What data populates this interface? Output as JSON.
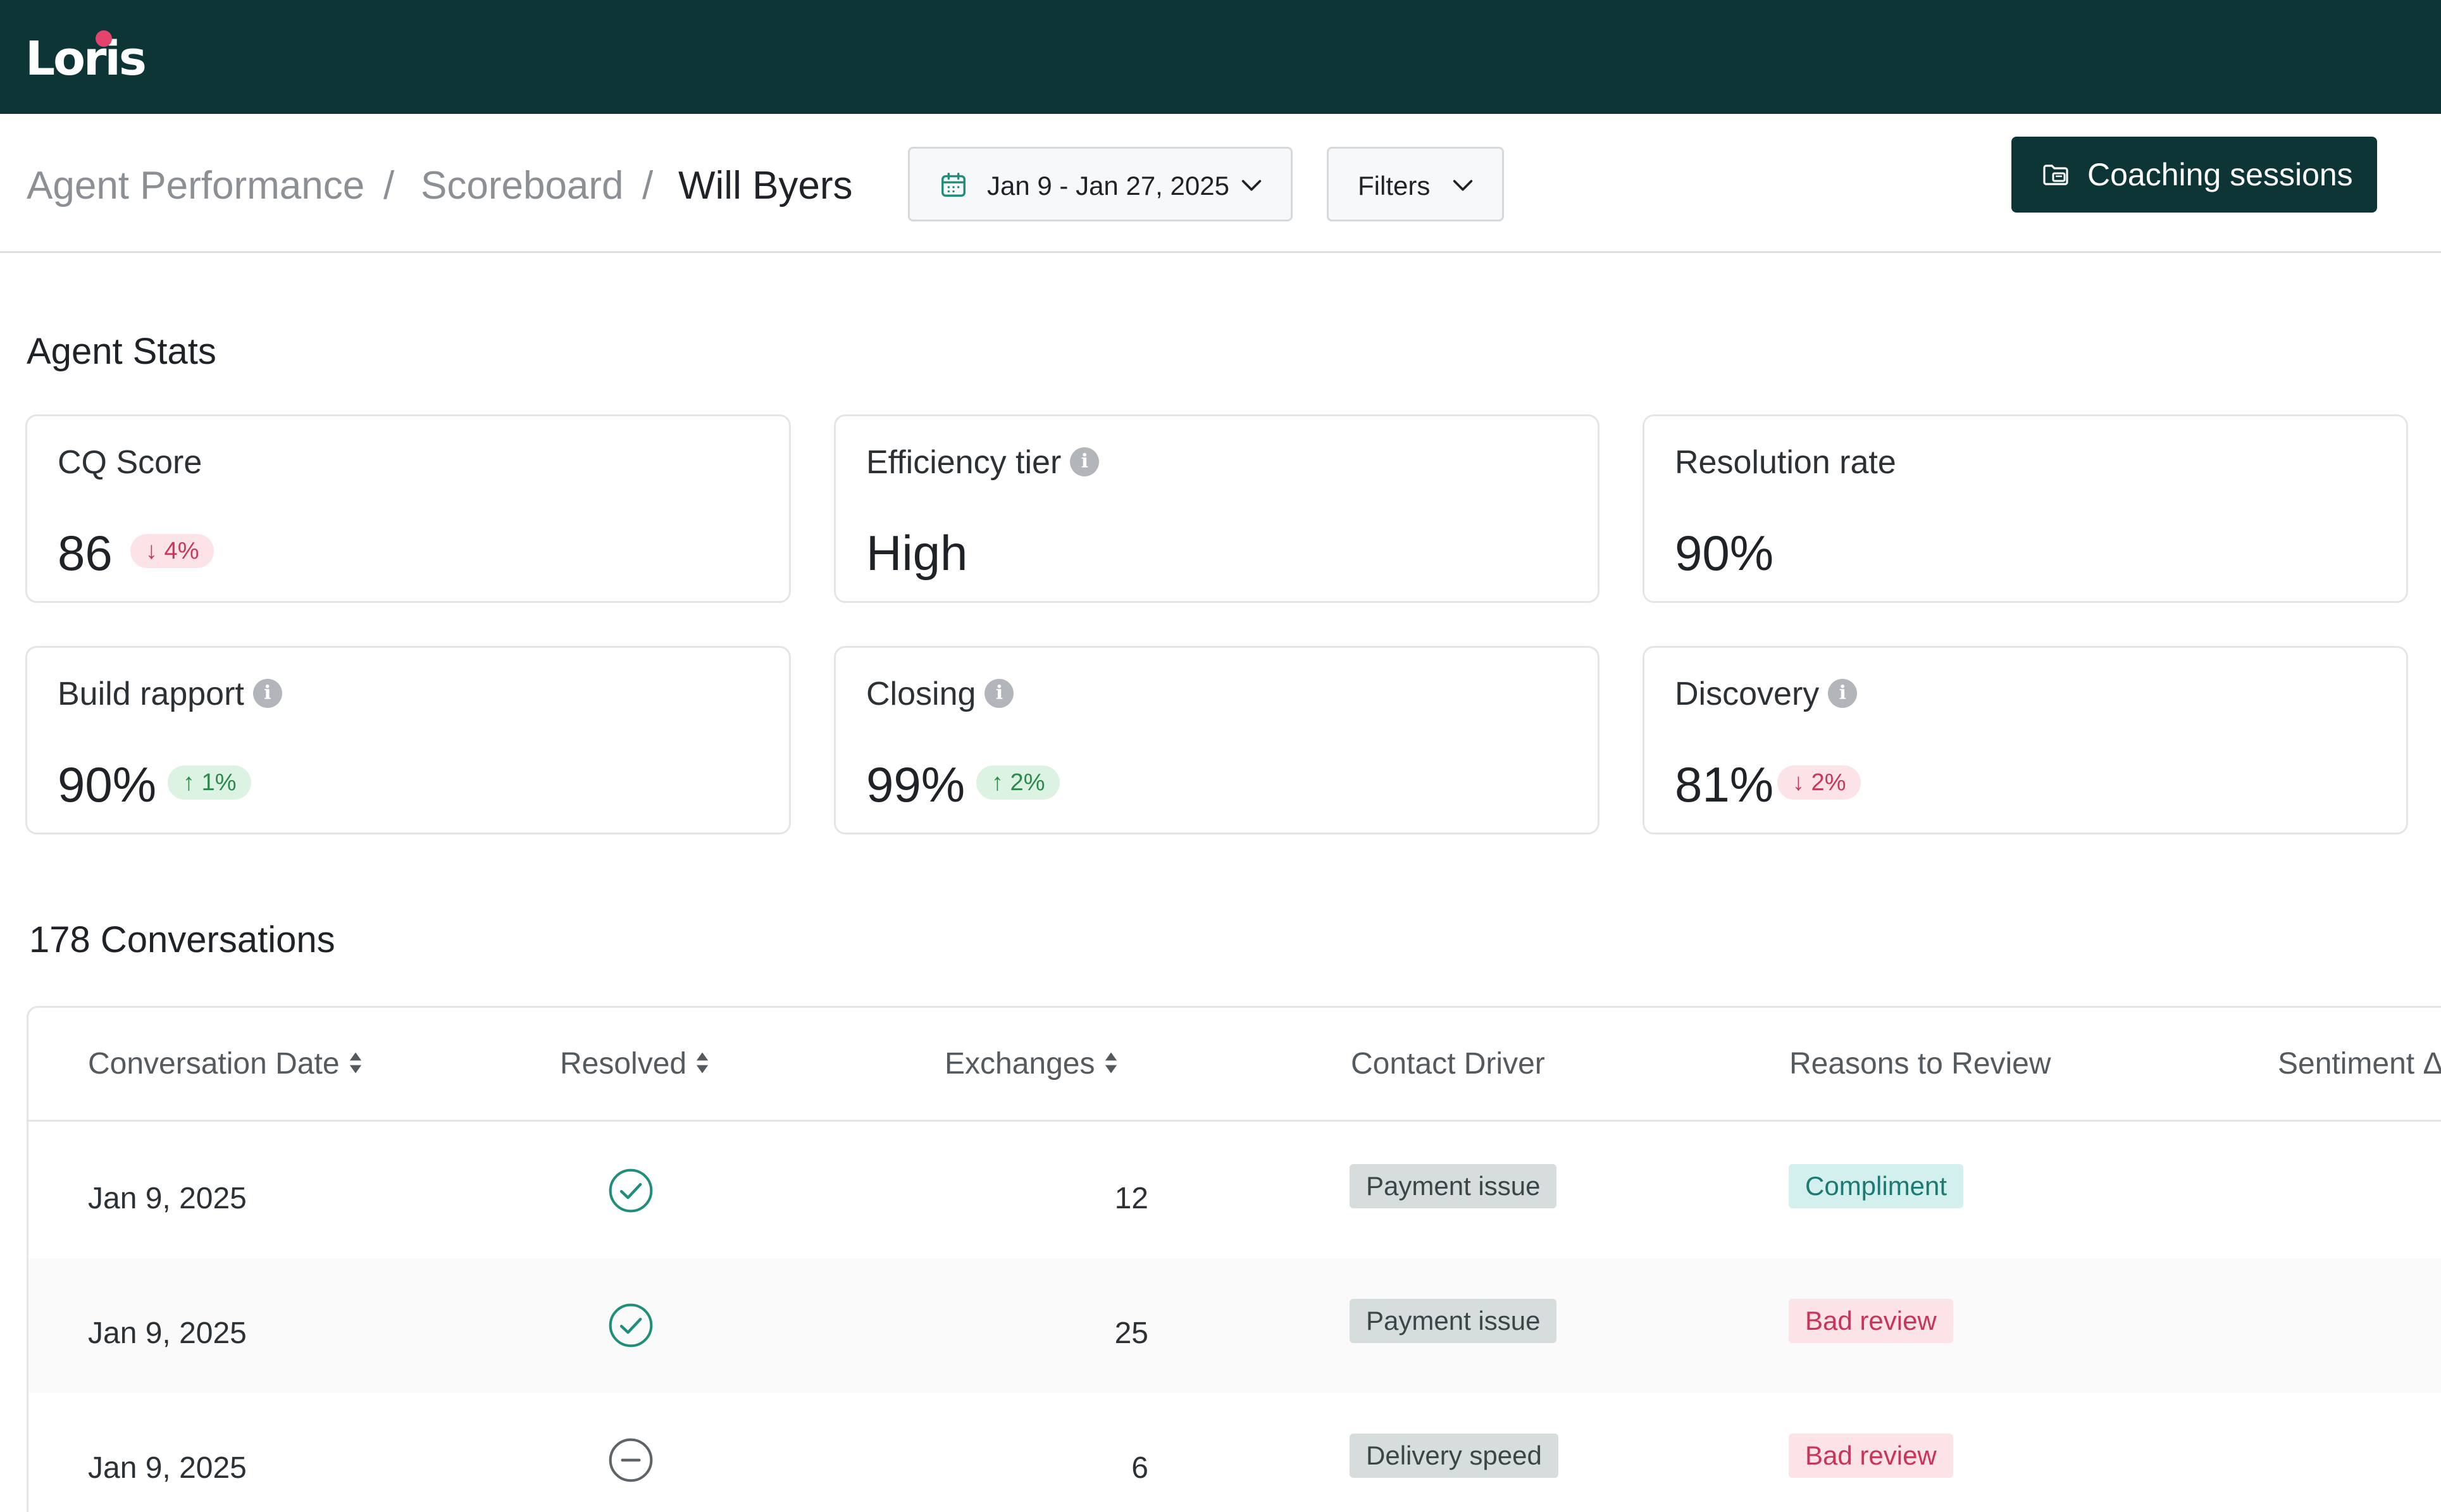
{
  "app": {
    "logo_text": "Loris"
  },
  "breadcrumb": {
    "items": [
      "Agent Performance",
      "Scoreboard",
      "Will Byers"
    ],
    "separator": "/"
  },
  "date_range": {
    "label": "Jan 9 - Jan 27, 2025"
  },
  "filters": {
    "label": "Filters"
  },
  "coaching": {
    "label": "Coaching sessions"
  },
  "stats": {
    "title": "Agent Stats",
    "cards": [
      {
        "label": "CQ Score",
        "value": "86",
        "delta": "↓ 4%",
        "trend": "down",
        "info": false
      },
      {
        "label": "Efficiency tier",
        "value": "High",
        "info": true
      },
      {
        "label": "Resolution rate",
        "value": "90%",
        "info": false
      },
      {
        "label": "Build rapport",
        "value": "90%",
        "delta": "↑ 1%",
        "trend": "up",
        "info": true
      },
      {
        "label": "Closing",
        "value": "99%",
        "delta": "↑ 2%",
        "trend": "up",
        "info": true
      },
      {
        "label": "Discovery",
        "value": "81%",
        "delta": "↓ 2%",
        "trend": "down",
        "info": true
      }
    ]
  },
  "conversations": {
    "title": "178 Conversations",
    "columns": [
      "Conversation Date",
      "Resolved",
      "Exchanges",
      "Contact Driver",
      "Reasons to Review",
      "Sentiment Δ"
    ],
    "rows": [
      {
        "date": "Jan 9, 2025",
        "resolved": true,
        "exchanges": "12",
        "driver": "Payment issue",
        "reason": "Compliment",
        "reason_type": "positive"
      },
      {
        "date": "Jan 9, 2025",
        "resolved": true,
        "exchanges": "25",
        "driver": "Payment issue",
        "reason": "Bad review",
        "reason_type": "negative"
      },
      {
        "date": "Jan 9, 2025",
        "resolved": false,
        "exchanges": "6",
        "driver": "Delivery speed",
        "reason": "Bad review",
        "reason_type": "negative"
      }
    ]
  },
  "colors": {
    "brand": "#0d3535",
    "accent_dot": "#e4436e",
    "up": "#2b8a4b",
    "down": "#c8385a"
  }
}
